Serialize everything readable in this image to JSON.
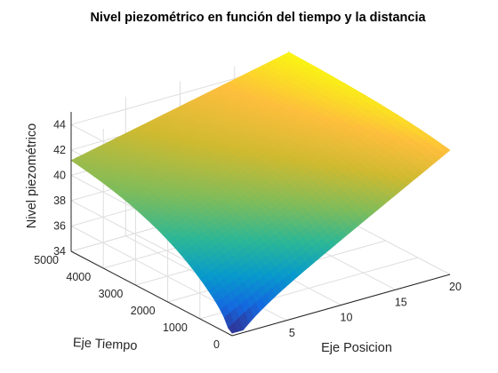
{
  "chart_data": {
    "type": "surface",
    "title": "Nivel piezométrico en función del tiempo y la distancia",
    "xlabel": "Eje Posicion",
    "ylabel": "Eje Tiempo",
    "zlabel": "Nivel piezométrico",
    "xlim": [
      0,
      20
    ],
    "ylim": [
      0,
      5000
    ],
    "zlim": [
      34,
      45
    ],
    "xticks": [
      "5",
      "10",
      "15",
      "20"
    ],
    "yticks": [
      "0",
      "1000",
      "2000",
      "3000",
      "4000",
      "5000"
    ],
    "zticks": [
      "34",
      "36",
      "38",
      "40",
      "42",
      "44"
    ],
    "grid": true,
    "colormap": "parula",
    "surface": {
      "corners": [
        {
          "x": 0,
          "y": 0,
          "z": 34.5
        },
        {
          "x": 20,
          "y": 0,
          "z": 43.8
        },
        {
          "x": 0,
          "y": 5000,
          "z": 42.0
        },
        {
          "x": 20,
          "y": 5000,
          "z": 45.0
        }
      ]
    }
  }
}
